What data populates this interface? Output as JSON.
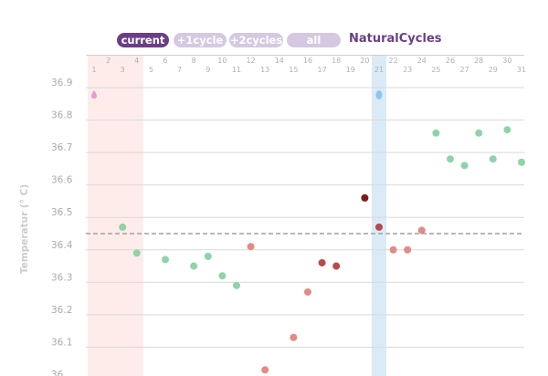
{
  "nav": {
    "buttons": [
      {
        "label": "current",
        "active": true
      },
      {
        "label": "+1cycle",
        "active": false
      },
      {
        "label": "+2cycles",
        "active": false
      },
      {
        "label": "all",
        "active": false
      }
    ],
    "brand": "NaturalCycles"
  },
  "colors": {
    "accent": "#6a3f85",
    "pill_inactive": "#d5c9e2",
    "period_band": "#fdecea",
    "ovulation_band": "#dbeaf7",
    "green_point": "#8fd3a8",
    "red_light_point": "#e28b86",
    "red_mid_point": "#b84a4a",
    "red_dark_point": "#7a1a1a"
  },
  "chart_data": {
    "type": "scatter",
    "ylabel": "Temperatur (° C)",
    "ylim": [
      35.98,
      36.95
    ],
    "y_ticks": [
      "36.9",
      "36.8",
      "36.7",
      "36.6",
      "36.5",
      "36.4",
      "36.3",
      "36.2",
      "36.1",
      "36"
    ],
    "x_days": [
      1,
      31
    ],
    "coverline": 36.45,
    "period_days": [
      1,
      4
    ],
    "ovulation_day": 21,
    "markers": [
      {
        "day": 1,
        "type": "period-drop-icon"
      },
      {
        "day": 21,
        "type": "ovulation-egg-icon"
      }
    ],
    "points": [
      {
        "day": 3,
        "temp": 36.47,
        "color": "green"
      },
      {
        "day": 4,
        "temp": 36.39,
        "color": "green"
      },
      {
        "day": 6,
        "temp": 36.37,
        "color": "green"
      },
      {
        "day": 8,
        "temp": 36.35,
        "color": "green"
      },
      {
        "day": 9,
        "temp": 36.38,
        "color": "green"
      },
      {
        "day": 10,
        "temp": 36.32,
        "color": "green"
      },
      {
        "day": 11,
        "temp": 36.29,
        "color": "green"
      },
      {
        "day": 12,
        "temp": 36.41,
        "color": "red_light"
      },
      {
        "day": 13,
        "temp": 36.03,
        "color": "red_light"
      },
      {
        "day": 15,
        "temp": 36.13,
        "color": "red_light"
      },
      {
        "day": 16,
        "temp": 36.27,
        "color": "red_light"
      },
      {
        "day": 17,
        "temp": 36.36,
        "color": "red_mid"
      },
      {
        "day": 18,
        "temp": 36.35,
        "color": "red_mid"
      },
      {
        "day": 20,
        "temp": 36.56,
        "color": "red_dark"
      },
      {
        "day": 21,
        "temp": 36.47,
        "color": "red_mid"
      },
      {
        "day": 22,
        "temp": 36.4,
        "color": "red_light"
      },
      {
        "day": 23,
        "temp": 36.4,
        "color": "red_light"
      },
      {
        "day": 24,
        "temp": 36.46,
        "color": "red_light"
      },
      {
        "day": 25,
        "temp": 36.76,
        "color": "green"
      },
      {
        "day": 26,
        "temp": 36.68,
        "color": "green"
      },
      {
        "day": 27,
        "temp": 36.66,
        "color": "green"
      },
      {
        "day": 28,
        "temp": 36.76,
        "color": "green"
      },
      {
        "day": 29,
        "temp": 36.68,
        "color": "green"
      },
      {
        "day": 30,
        "temp": 36.77,
        "color": "green"
      },
      {
        "day": 31,
        "temp": 36.67,
        "color": "green"
      }
    ]
  }
}
